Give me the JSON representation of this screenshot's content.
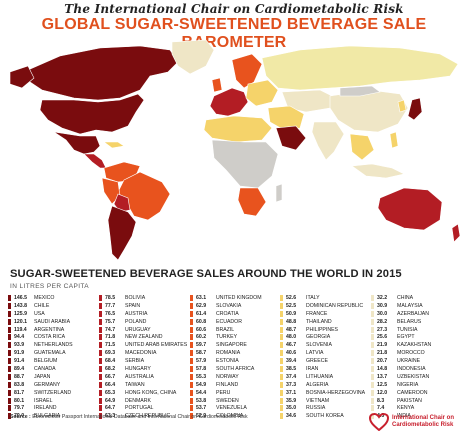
{
  "header": {
    "brand": "The International Chair on Cardiometabolic Risk",
    "title": "GLOBAL SUGAR-SWEETENED BEVERAGE SALE BAROMETER"
  },
  "map": {
    "description_colors": {
      "very_high": "#7a0c0e",
      "high": "#b31d24",
      "medium_high": "#e8531e",
      "medium": "#f7a35c",
      "medium_low": "#f5d36a",
      "low": "#f1e9a6",
      "very_low": "#efe6c6",
      "no_data": "#cfcdc9",
      "ocean": "#ffffff"
    }
  },
  "section": {
    "subtitle": "SUGAR-SWEETENED BEVERAGE SALES AROUND THE WORLD IN 2015",
    "unit": "IN LITRES PER CAPITA"
  },
  "footer": {
    "source_label": "Source :",
    "source_text": "Euromonitor Passport International Database and International Chair on Cardiometabolic Risk",
    "logo_line1": "International Chair on",
    "logo_line2": "Cardiometabolic Risk"
  },
  "chart_data": {
    "type": "table",
    "title": "SUGAR-SWEETENED BEVERAGE SALES AROUND THE WORLD IN 2015",
    "unit": "IN LITRES PER CAPITA",
    "columns": [
      {
        "color": "#7a0c0e",
        "rows": [
          {
            "value": "146.5",
            "country": "MEXICO"
          },
          {
            "value": "143.8",
            "country": "CHILE"
          },
          {
            "value": "125.9",
            "country": "USA"
          },
          {
            "value": "120.1",
            "country": "SAUDI ARABIA"
          },
          {
            "value": "119.4",
            "country": "ARGENTINA"
          },
          {
            "value": "94.4",
            "country": "COSTA RICA"
          },
          {
            "value": "93.9",
            "country": "NETHERLANDS"
          },
          {
            "value": "91.9",
            "country": "GUATEMALA"
          },
          {
            "value": "91.4",
            "country": "BELGIUM"
          },
          {
            "value": "89.4",
            "country": "CANADA"
          },
          {
            "value": "88.7",
            "country": "JAPAN"
          },
          {
            "value": "83.8",
            "country": "GERMANY"
          },
          {
            "value": "81.7",
            "country": "SWITZERLAND"
          },
          {
            "value": "80.1",
            "country": "ISRAEL"
          },
          {
            "value": "79.7",
            "country": "IRELAND"
          },
          {
            "value": "79.0",
            "country": "BULGARIA"
          }
        ]
      },
      {
        "color": "#b31d24",
        "rows": [
          {
            "value": "78.5",
            "country": "BOLIVIA"
          },
          {
            "value": "77.7",
            "country": "SPAIN"
          },
          {
            "value": "76.5",
            "country": "AUSTRIA"
          },
          {
            "value": "75.7",
            "country": "POLAND"
          },
          {
            "value": "74.7",
            "country": "URUGUAY"
          },
          {
            "value": "71.8",
            "country": "NEW ZEALAND"
          },
          {
            "value": "71.5",
            "country": "UNITED ARAB EMIRATES"
          },
          {
            "value": "69.3",
            "country": "MACEDONIA"
          },
          {
            "value": "68.4",
            "country": "SERBIA"
          },
          {
            "value": "68.2",
            "country": "HUNGARY"
          },
          {
            "value": "66.7",
            "country": "AUSTRALIA"
          },
          {
            "value": "66.4",
            "country": "TAIWAN"
          },
          {
            "value": "65.3",
            "country": "HONG KONG, CHINA"
          },
          {
            "value": "64.9",
            "country": "DENMARK"
          },
          {
            "value": "64.7",
            "country": "PORTUGAL"
          },
          {
            "value": "63.3",
            "country": "CZECH REPUBLIC"
          }
        ]
      },
      {
        "color": "#e8531e",
        "rows": [
          {
            "value": "63.1",
            "country": "UNITED KINGDOM"
          },
          {
            "value": "62.9",
            "country": "SLOVAKIA"
          },
          {
            "value": "61.4",
            "country": "CROATIA"
          },
          {
            "value": "60.8",
            "country": "ECUADOR"
          },
          {
            "value": "60.6",
            "country": "BRAZIL"
          },
          {
            "value": "60.2",
            "country": "TURKEY"
          },
          {
            "value": "59.7",
            "country": "SINGAPORE"
          },
          {
            "value": "58.7",
            "country": "ROMANIA"
          },
          {
            "value": "57.9",
            "country": "ESTONIA"
          },
          {
            "value": "57.8",
            "country": "SOUTH AFRICA"
          },
          {
            "value": "55.3",
            "country": "NORWAY"
          },
          {
            "value": "54.9",
            "country": "FINLAND"
          },
          {
            "value": "54.4",
            "country": "PERU"
          },
          {
            "value": "53.8",
            "country": "SWEDEN"
          },
          {
            "value": "53.7",
            "country": "VENEZUELA"
          },
          {
            "value": "52.9",
            "country": "COLOMBIA"
          }
        ]
      },
      {
        "color": "#f5d36a",
        "rows": [
          {
            "value": "52.6",
            "country": "ITALY"
          },
          {
            "value": "52.5",
            "country": "DOMINICAN REPUBLIC"
          },
          {
            "value": "50.9",
            "country": "FRANCE"
          },
          {
            "value": "48.8",
            "country": "THAILAND"
          },
          {
            "value": "48.7",
            "country": "PHILIPPINES"
          },
          {
            "value": "48.0",
            "country": "GEORGIA"
          },
          {
            "value": "46.7",
            "country": "SLOVENIA"
          },
          {
            "value": "40.6",
            "country": "LATVIA"
          },
          {
            "value": "39.4",
            "country": "GREECE"
          },
          {
            "value": "38.5",
            "country": "IRAN"
          },
          {
            "value": "37.4",
            "country": "LITHUANIA"
          },
          {
            "value": "37.3",
            "country": "ALGERIA"
          },
          {
            "value": "37.1",
            "country": "BOSNIA-HERZEGOVINA"
          },
          {
            "value": "35.9",
            "country": "VIETNAM"
          },
          {
            "value": "35.0",
            "country": "RUSSIA"
          },
          {
            "value": "34.6",
            "country": "SOUTH KOREA"
          }
        ]
      },
      {
        "color": "#efe6c6",
        "rows": [
          {
            "value": "32.2",
            "country": "CHINA"
          },
          {
            "value": "30.9",
            "country": "MALAYSIA"
          },
          {
            "value": "30.0",
            "country": "AZERBAIJAN"
          },
          {
            "value": "28.2",
            "country": "BELARUS"
          },
          {
            "value": "27.3",
            "country": "TUNISIA"
          },
          {
            "value": "25.6",
            "country": "EGYPT"
          },
          {
            "value": "21.9",
            "country": "KAZAKHSTAN"
          },
          {
            "value": "21.8",
            "country": "MOROCCO"
          },
          {
            "value": "20.7",
            "country": "UKRAINE"
          },
          {
            "value": "14.8",
            "country": "INDONESIA"
          },
          {
            "value": "13.7",
            "country": "UZBEKISTAN"
          },
          {
            "value": "12.5",
            "country": "NIGERIA"
          },
          {
            "value": "12.0",
            "country": "CAMEROON"
          },
          {
            "value": "8.3",
            "country": "PAKISTAN"
          },
          {
            "value": "7.4",
            "country": "KENYA"
          },
          {
            "value": "4.5",
            "country": "INDIA"
          }
        ]
      }
    ]
  }
}
